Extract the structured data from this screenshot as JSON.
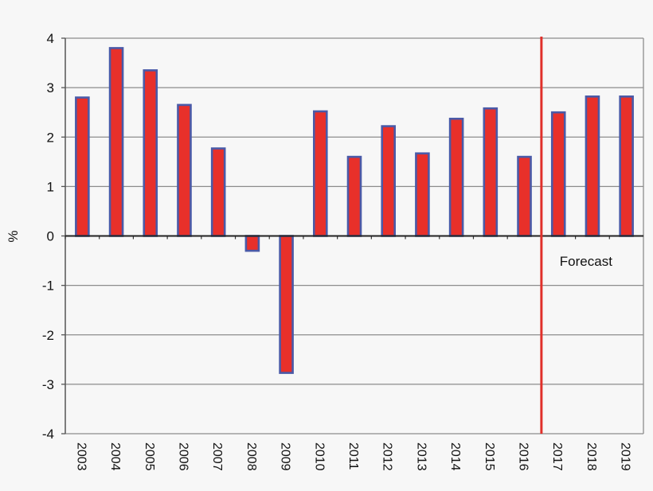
{
  "chart_data": {
    "type": "bar",
    "title": "",
    "xlabel": "",
    "ylabel": "%",
    "ylim": [
      -4,
      4
    ],
    "yticks": [
      4,
      3,
      2,
      1,
      0,
      -1,
      -2,
      -3,
      -4
    ],
    "grid": true,
    "categories": [
      "2003",
      "2004",
      "2005",
      "2006",
      "2007",
      "2008",
      "2009",
      "2010",
      "2011",
      "2012",
      "2013",
      "2014",
      "2015",
      "2016",
      "2017",
      "2018",
      "2019"
    ],
    "values": [
      2.8,
      3.8,
      3.35,
      2.65,
      1.77,
      -0.3,
      -2.77,
      2.52,
      1.6,
      2.22,
      1.67,
      2.37,
      2.58,
      1.6,
      2.5,
      2.82,
      2.82
    ],
    "bar_fill_color": "#e8302a",
    "bar_border_color": "#4a5aa8",
    "forecast_line_color": "#e0302a",
    "forecast_after": "2016",
    "annotations": [
      {
        "text": "Forecast"
      }
    ]
  }
}
